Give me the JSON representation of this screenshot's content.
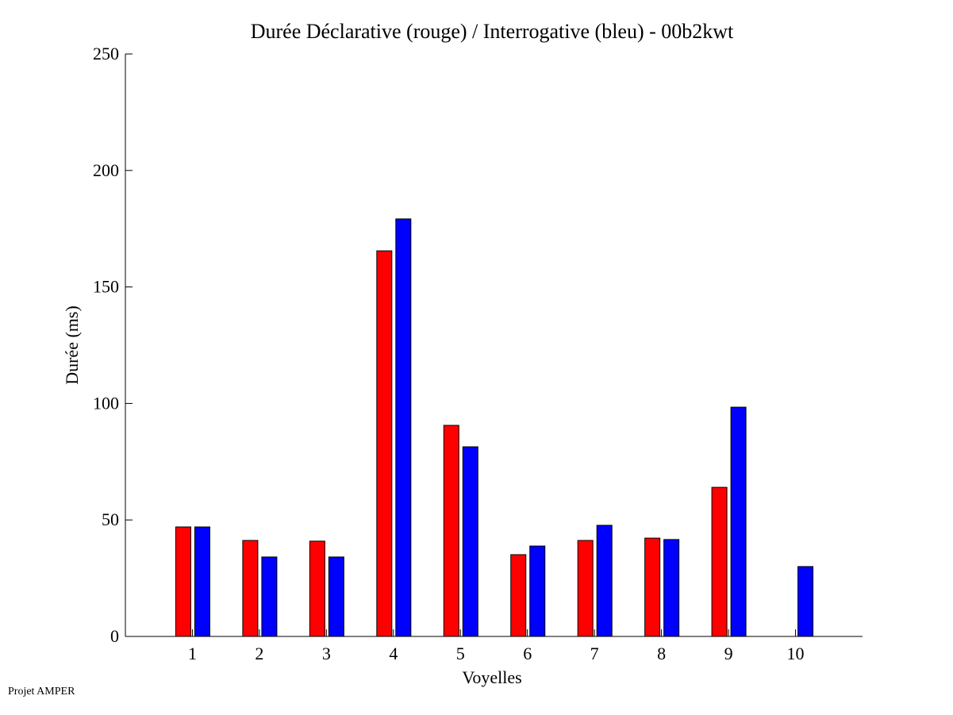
{
  "chart_data": {
    "type": "bar",
    "title": "Durée Déclarative (rouge) / Interrogative (bleu) - 00b2kwt",
    "xlabel": "Voyelles",
    "ylabel": "Durée (ms)",
    "categories": [
      "1",
      "2",
      "3",
      "4",
      "5",
      "6",
      "7",
      "8",
      "9",
      "10"
    ],
    "ylim": [
      0,
      250
    ],
    "xlim": [
      0,
      11
    ],
    "yticks": [
      0,
      50,
      100,
      150,
      200,
      250
    ],
    "grid": false,
    "series": [
      {
        "name": "Déclarative",
        "color": "#ff0000",
        "values": [
          47,
          41.2,
          40.9,
          165.5,
          90.6,
          35.1,
          41.2,
          42.2,
          64,
          0
        ]
      },
      {
        "name": "Interrogative",
        "color": "#0000ff",
        "values": [
          47,
          34.1,
          34.1,
          179.2,
          81.4,
          38.8,
          47.7,
          41.6,
          98.4,
          30
        ]
      }
    ]
  },
  "footer": "Projet AMPER"
}
